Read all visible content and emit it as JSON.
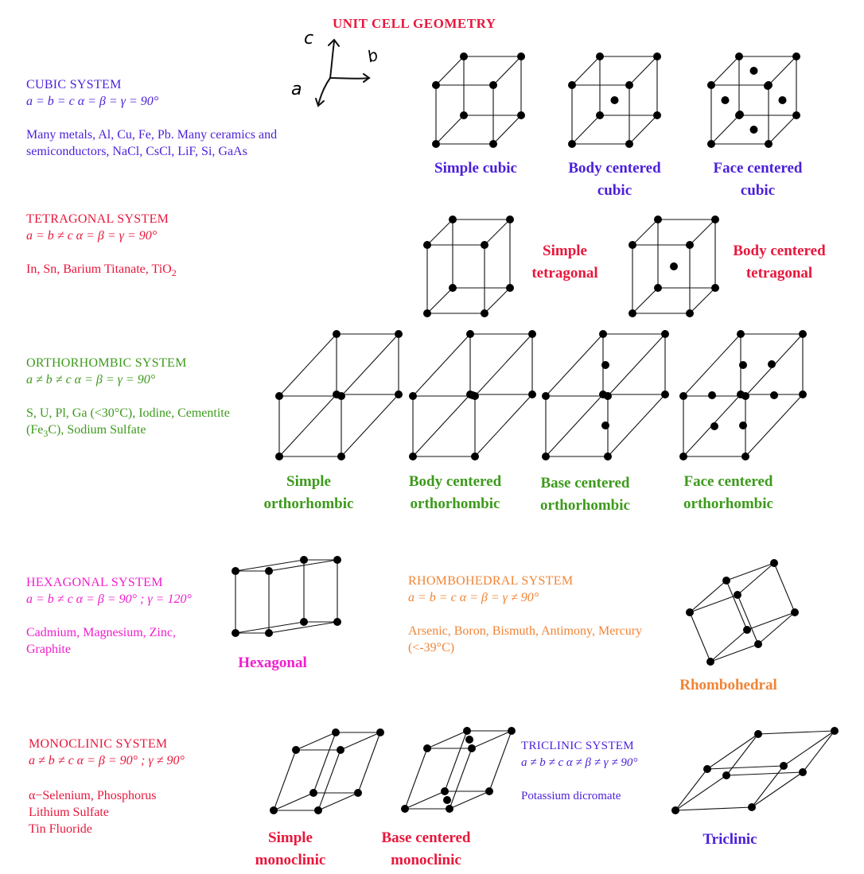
{
  "title": "UNIT CELL GEOMETRY",
  "axes_sketch": {
    "c": "c",
    "b": "b",
    "a": "a"
  },
  "colors": {
    "blue": "#4b1fd9",
    "red": "#e8173c",
    "green": "#3d9a1c",
    "magenta": "#ef1fce",
    "orange": "#f08436"
  },
  "cubic": {
    "name": "CUBIC SYSTEM",
    "formula": "a = b = c     α = β = γ = 90°",
    "examples": "Many metals, Al, Cu, Fe, Pb. Many ceramics and semiconductors, NaCl, CsCl, LiF, Si, GaAs",
    "labels": [
      {
        "l1": "Simple cubic",
        "l2": ""
      },
      {
        "l1": "Body centered",
        "l2": "cubic"
      },
      {
        "l1": "Face centered",
        "l2": "cubic"
      }
    ]
  },
  "tetragonal": {
    "name": "TETRAGONAL  SYSTEM",
    "formula": "a = b ≠ c     α = β = γ = 90°",
    "examples": "In, Sn, Barium Titanate, TiO",
    "examples_sub": "2",
    "labels": [
      {
        "l1": "Simple",
        "l2": "tetragonal"
      },
      {
        "l1": "Body centered",
        "l2": "tetragonal"
      }
    ]
  },
  "orthorhombic": {
    "name": "ORTHORHOMBIC  SYSTEM",
    "formula": "a ≠ b ≠ c    α = β = γ = 90°",
    "examples_1": "S, U, Pl, Ga (<30°C), Iodine, Cementite",
    "examples_2a": "(Fe",
    "examples_sub": "3",
    "examples_2b": "C), Sodium Sulfate",
    "labels": [
      {
        "l1": "Simple",
        "l2": "orthorhombic"
      },
      {
        "l1": "Body centered",
        "l2": "orthorhombic"
      },
      {
        "l1": "Base centered",
        "l2": "orthorhombic"
      },
      {
        "l1": "Face centered",
        "l2": "orthorhombic"
      }
    ]
  },
  "hexagonal": {
    "name": "HEXAGONAL SYSTEM",
    "formula": "a = b ≠ c    α = β = 90° ; γ = 120°",
    "examples": "Cadmium, Magnesium, Zinc, Graphite",
    "label": "Hexagonal"
  },
  "rhombohedral": {
    "name": "RHOMBOHEDRAL  SYSTEM",
    "formula": "a = b = c    α = β = γ ≠ 90°",
    "examples": "Arsenic, Boron, Bismuth, Antimony, Mercury (<-39°C)",
    "label": "Rhombohedral"
  },
  "monoclinic": {
    "name": "MONOCLINIC SYSTEM",
    "formula": "a ≠ b ≠ c    α = β = 90° ; γ ≠ 90°",
    "examples": [
      "α−Selenium,  Phosphorus",
      "Lithium Sulfate",
      "Tin Fluoride"
    ],
    "labels": [
      {
        "l1": "Simple",
        "l2": "monoclinic"
      },
      {
        "l1": "Base centered",
        "l2": "monoclinic"
      }
    ]
  },
  "triclinic": {
    "name": "TRICLINIC  SYSTEM",
    "formula": "a ≠  b ≠ c    α  ≠ β  ≠  γ  ≠ 90°",
    "examples": "Potassium   dicromate",
    "label": "Triclinic"
  }
}
